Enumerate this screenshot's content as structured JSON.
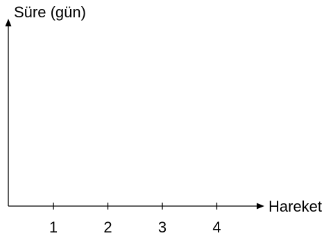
{
  "chart_data": {
    "type": "line",
    "title": "",
    "ylabel": "Süre (gün)",
    "xlabel": "Hareket",
    "categories": [
      "1",
      "2",
      "3",
      "4"
    ],
    "series": [],
    "grid": false,
    "legend": "none",
    "colors": {
      "axis": "#000000",
      "background": "#ffffff"
    }
  }
}
